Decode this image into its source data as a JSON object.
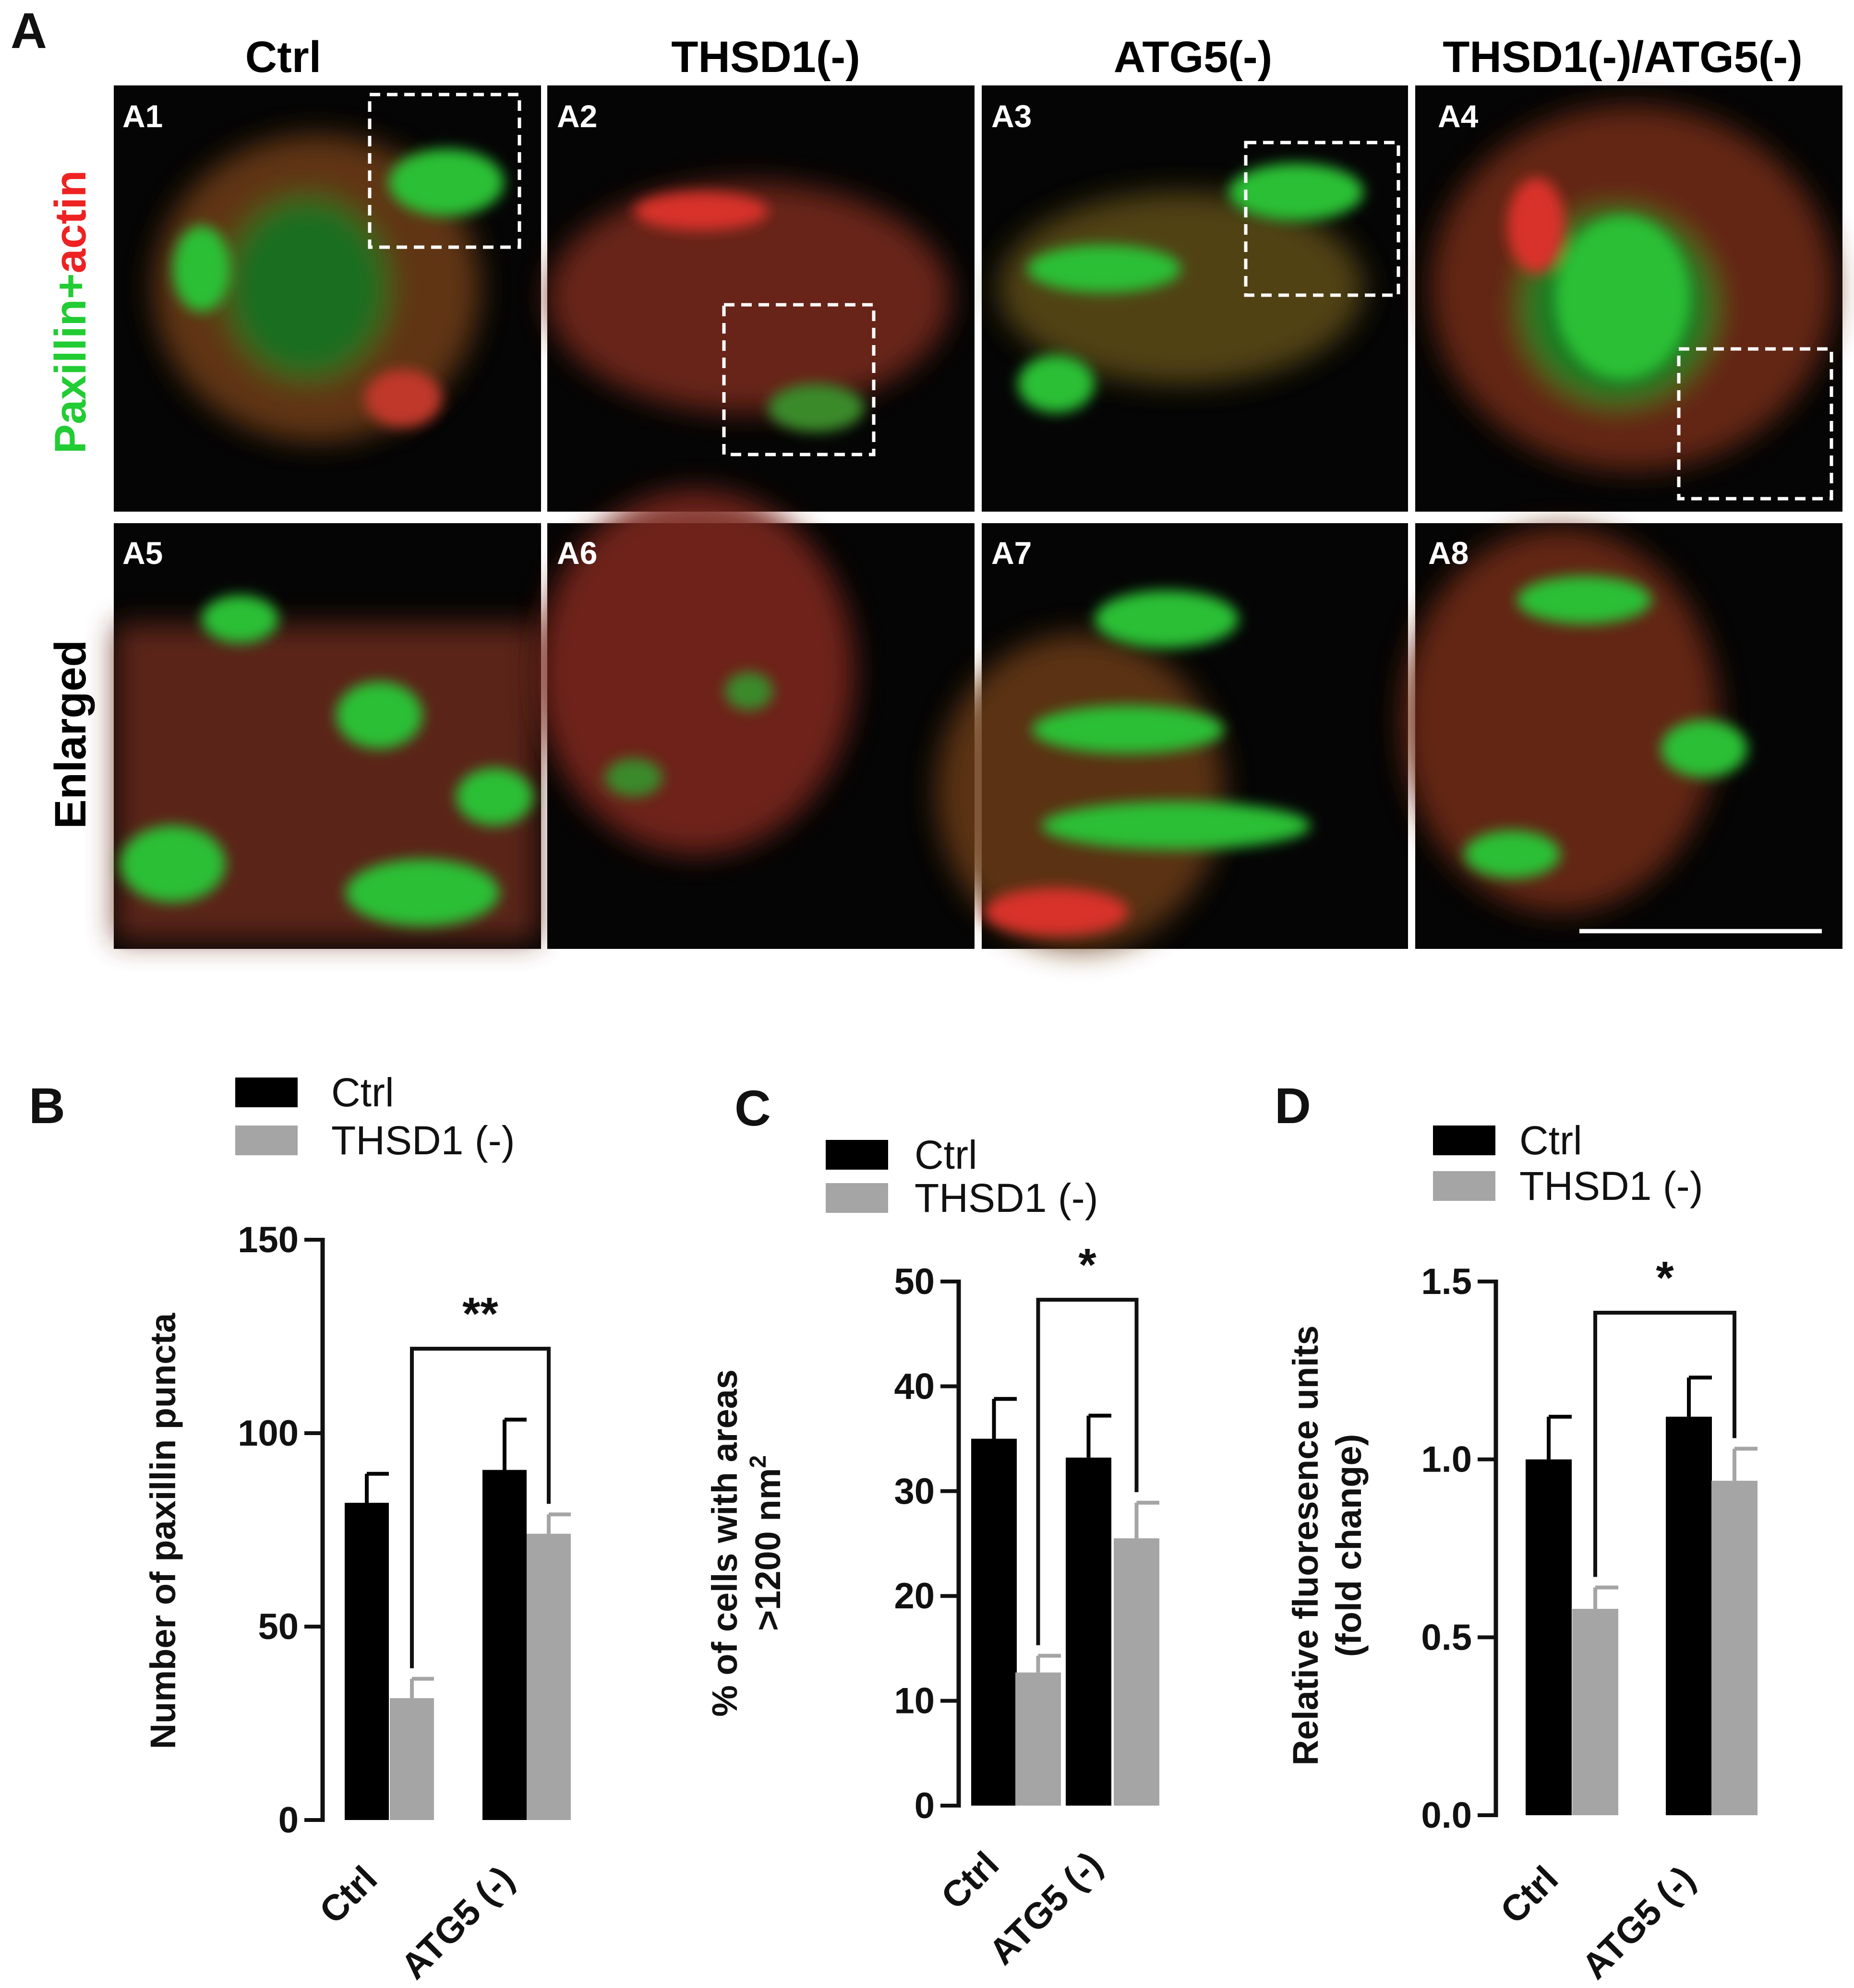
{
  "figure_letter": "A",
  "microscopy": {
    "columns": [
      "Ctrl",
      "THSD1(-)",
      "ATG5(-)",
      "THSD1(-)/ATG5(-)"
    ],
    "top_sublabels": [
      "A1",
      "A2",
      "A3",
      "A4"
    ],
    "bottom_sublabels": [
      "A5",
      "A6",
      "A7",
      "A8"
    ],
    "row1_label_green": "Paxillin",
    "row1_label_plus": "+",
    "row1_label_red": "actin",
    "row2_label": "Enlarged",
    "colors": {
      "green": "#22cc33",
      "red": "#ee2222",
      "background": "#050505"
    }
  },
  "chart_data": [
    {
      "panel": "B",
      "type": "bar",
      "categories": [
        "Ctrl",
        "ATG5 (-)"
      ],
      "series": [
        {
          "name": "Ctrl",
          "values": [
            82,
            90.5
          ],
          "errors": [
            7.5,
            13
          ],
          "color": "#000000"
        },
        {
          "name": "THSD1 (-)",
          "values": [
            31.5,
            74
          ],
          "errors": [
            5,
            5
          ],
          "color": "#a5a5a5"
        }
      ],
      "ylabel": "Number of paxillin puncta",
      "ylim": [
        0,
        150
      ],
      "yticks": [
        "0",
        "50",
        "100",
        "150"
      ],
      "significance": "**"
    },
    {
      "panel": "C",
      "type": "bar",
      "categories": [
        "Ctrl",
        "ATG5 (-)"
      ],
      "series": [
        {
          "name": "Ctrl",
          "values": [
            35,
            33.2
          ],
          "errors": [
            3.8,
            4
          ],
          "color": "#000000"
        },
        {
          "name": "THSD1 (-)",
          "values": [
            12.7,
            25.5
          ],
          "errors": [
            1.6,
            3.4
          ],
          "color": "#a5a5a5"
        }
      ],
      "ylabel_lines": [
        "% of cells with areas",
        ">1200 nm"
      ],
      "ylabel_sup": "2",
      "ylim": [
        0,
        50
      ],
      "yticks": [
        "0",
        "10",
        "20",
        "30",
        "40",
        "50"
      ],
      "significance": "*"
    },
    {
      "panel": "D",
      "type": "bar",
      "categories": [
        "Ctrl",
        "ATG5 (-)"
      ],
      "series": [
        {
          "name": "Ctrl",
          "values": [
            1.0,
            1.12
          ],
          "errors": [
            0.12,
            0.11
          ],
          "color": "#000000"
        },
        {
          "name": "THSD1 (-)",
          "values": [
            0.58,
            0.94
          ],
          "errors": [
            0.06,
            0.09
          ],
          "color": "#a5a5a5"
        }
      ],
      "ylabel_lines": [
        "Relative fluoresence units",
        "(fold change)"
      ],
      "ylim": [
        0,
        1.5
      ],
      "yticks": [
        "0.0",
        "0.5",
        "1.0",
        "1.5"
      ],
      "significance": "*"
    }
  ]
}
